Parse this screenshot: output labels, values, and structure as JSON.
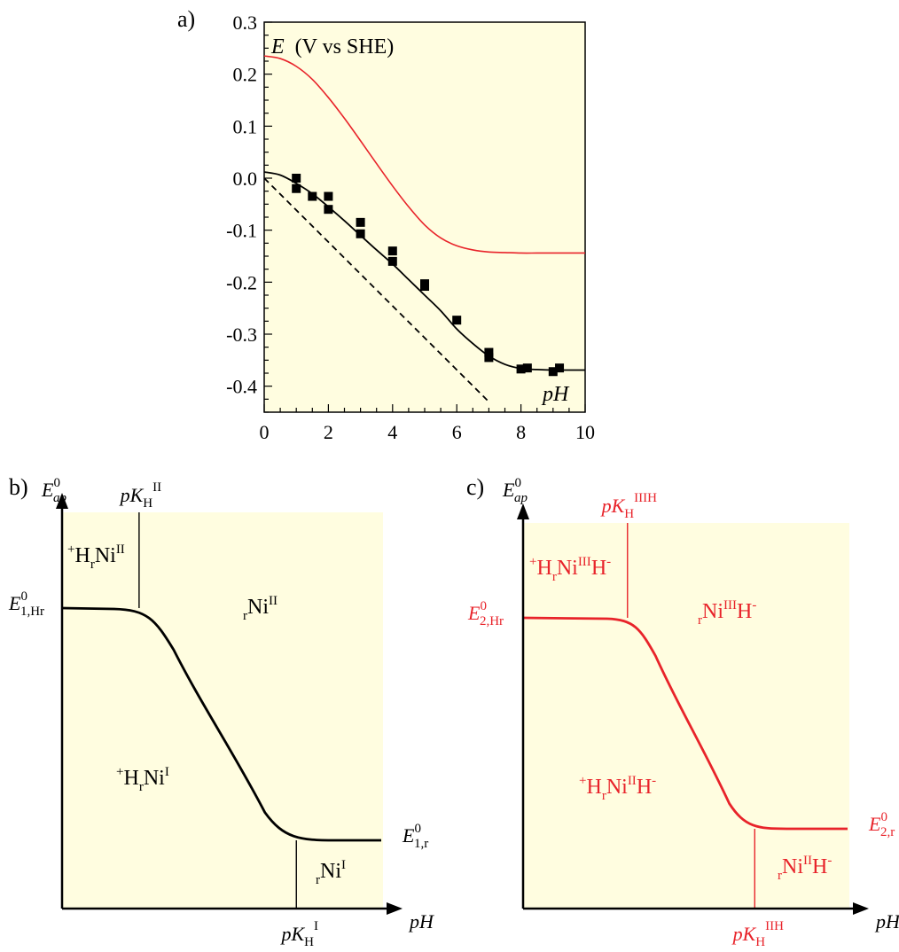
{
  "colors": {
    "panel_bg": "#fffde0",
    "black": "#000000",
    "red": "#e8232a"
  },
  "chart_data": [
    {
      "panel": "a)",
      "type": "line",
      "ylabel_symbol": "E",
      "ylabel_unit": "(V vs SHE)",
      "xlabel": "pH",
      "xlim": [
        0,
        10
      ],
      "ylim": [
        -0.45,
        0.3
      ],
      "x_ticks": [
        0,
        2,
        4,
        6,
        8,
        10
      ],
      "x_ticklabels": [
        "0",
        "2",
        "4",
        "6",
        "8",
        "10"
      ],
      "y_ticks": [
        0.3,
        0.2,
        0.1,
        0.0,
        -0.1,
        -0.2,
        -0.3,
        -0.4
      ],
      "y_ticklabels": [
        "0.3",
        "0.2",
        "0.1",
        "0.0",
        "-0.1",
        "-0.2",
        "-0.3",
        "-0.4"
      ],
      "series": [
        {
          "style": "red-line",
          "x": [
            0,
            0.5,
            1,
            1.5,
            2,
            2.5,
            3,
            3.5,
            4,
            4.5,
            5,
            5.5,
            6,
            6.5,
            7,
            7.5,
            8,
            8.5,
            9,
            9.5,
            10
          ],
          "y": [
            0.235,
            0.23,
            0.215,
            0.19,
            0.155,
            0.115,
            0.072,
            0.028,
            -0.015,
            -0.055,
            -0.09,
            -0.115,
            -0.13,
            -0.138,
            -0.142,
            -0.143,
            -0.144,
            -0.144,
            -0.144,
            -0.144,
            -0.144
          ]
        },
        {
          "style": "black-line",
          "x": [
            0,
            0.5,
            1,
            1.5,
            2,
            2.5,
            3,
            3.5,
            4,
            4.5,
            5,
            5.5,
            6,
            6.5,
            7,
            7.5,
            8,
            8.5,
            9,
            9.5,
            10
          ],
          "y": [
            0.012,
            0.006,
            -0.01,
            -0.03,
            -0.055,
            -0.082,
            -0.11,
            -0.138,
            -0.165,
            -0.195,
            -0.225,
            -0.255,
            -0.29,
            -0.318,
            -0.342,
            -0.358,
            -0.366,
            -0.368,
            -0.369,
            -0.369,
            -0.369
          ]
        },
        {
          "style": "black-dashed",
          "x": [
            0,
            7.0
          ],
          "y": [
            0.0,
            -0.43
          ]
        },
        {
          "style": "squares",
          "x": [
            1.0,
            1.0,
            1.5,
            2.0,
            2.0,
            3.0,
            3.0,
            4.0,
            4.0,
            5.0,
            5.0,
            6.0,
            7.0,
            7.0,
            8.0,
            8.2,
            9.0,
            9.2
          ],
          "y": [
            0.0,
            -0.02,
            -0.035,
            -0.035,
            -0.06,
            -0.085,
            -0.107,
            -0.14,
            -0.16,
            -0.203,
            -0.208,
            -0.273,
            -0.335,
            -0.345,
            -0.367,
            -0.365,
            -0.372,
            -0.365
          ]
        }
      ]
    },
    {
      "panel": "b)",
      "type": "line",
      "ylabel": "E^0_ap",
      "xlabel": "pH",
      "curve": {
        "E_high": 1.0,
        "E_low": 0.0,
        "pK_left": 0.24,
        "pK_right": 0.73
      },
      "labels": {
        "ylabel_main": "E",
        "ylabel_sup": "0",
        "ylabel_sub": "ap",
        "e_high_main": "E",
        "e_high_sup": "0",
        "e_high_sub": "1,Hr",
        "e_low_main": "E",
        "e_low_sup": "0",
        "e_low_sub": "1,r",
        "pk_top_main": "pK",
        "pk_top_sub": "H",
        "pk_top_sup": "II",
        "pk_bot_main": "pK",
        "pk_bot_sub": "H",
        "pk_bot_sup": "I",
        "region_tl": {
          "sup": "+",
          "a": "H",
          "sub": "r",
          "b": "Ni",
          "sup2": "II",
          "tail": ""
        },
        "region_tr": {
          "sub": "r",
          "b": "Ni",
          "sup2": "II",
          "tail": ""
        },
        "region_bl": {
          "sup": "+",
          "a": "H",
          "sub": "r",
          "b": "Ni",
          "sup2": "I",
          "tail": ""
        },
        "region_br": {
          "sub": "r",
          "b": "Ni",
          "sup2": "I",
          "tail": ""
        }
      }
    },
    {
      "panel": "c)",
      "type": "line",
      "ylabel": "E^0_ap",
      "xlabel": "pH",
      "curve": {
        "E_high": 1.0,
        "E_low": 0.0,
        "pK_left": 0.32,
        "pK_right": 0.71
      },
      "labels": {
        "ylabel_main": "E",
        "ylabel_sup": "0",
        "ylabel_sub": "ap",
        "e_high_main": "E",
        "e_high_sup": "0",
        "e_high_sub": "2,Hr",
        "e_low_main": "E",
        "e_low_sup": "0",
        "e_low_sub": "2,r",
        "pk_top_main": "pK",
        "pk_top_sub": "H",
        "pk_top_sup": "IIIH",
        "pk_bot_main": "pK",
        "pk_bot_sub": "H",
        "pk_bot_sup": "IIH",
        "region_tl": {
          "sup": "+",
          "a": "H",
          "sub": "r",
          "b": "Ni",
          "sup2": "III",
          "tail": "H",
          "sup3": "-"
        },
        "region_tr": {
          "sub": "r",
          "b": "Ni",
          "sup2": "III",
          "tail": "H",
          "sup3": "-"
        },
        "region_bl": {
          "sup": "+",
          "a": "H",
          "sub": "r",
          "b": "Ni",
          "sup2": "II",
          "tail": "H",
          "sup3": "-"
        },
        "region_br": {
          "sub": "r",
          "b": "Ni",
          "sup2": "II",
          "tail": "H",
          "sup3": "-"
        }
      }
    }
  ]
}
